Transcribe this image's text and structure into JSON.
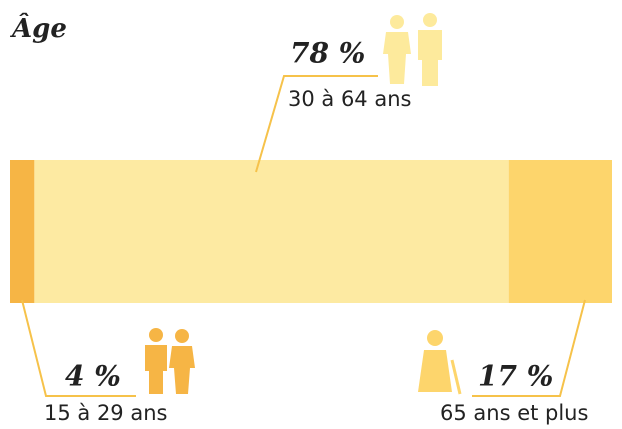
{
  "chart_data": {
    "type": "bar",
    "orientation": "horizontal",
    "stacked": true,
    "title": "Âge",
    "series": [
      {
        "name": "15 à 29 ans",
        "color": "#f6b545",
        "values": [
          4
        ],
        "value_labels": [
          "4 %"
        ]
      },
      {
        "name": "30 à 64 ans",
        "color": "#fdeaa2",
        "values": [
          78
        ],
        "value_labels": [
          "78 %"
        ]
      },
      {
        "name": "65 ans et plus",
        "color": "#fdd56c",
        "values": [
          17
        ],
        "value_labels": [
          "17 %"
        ]
      }
    ]
  }
}
